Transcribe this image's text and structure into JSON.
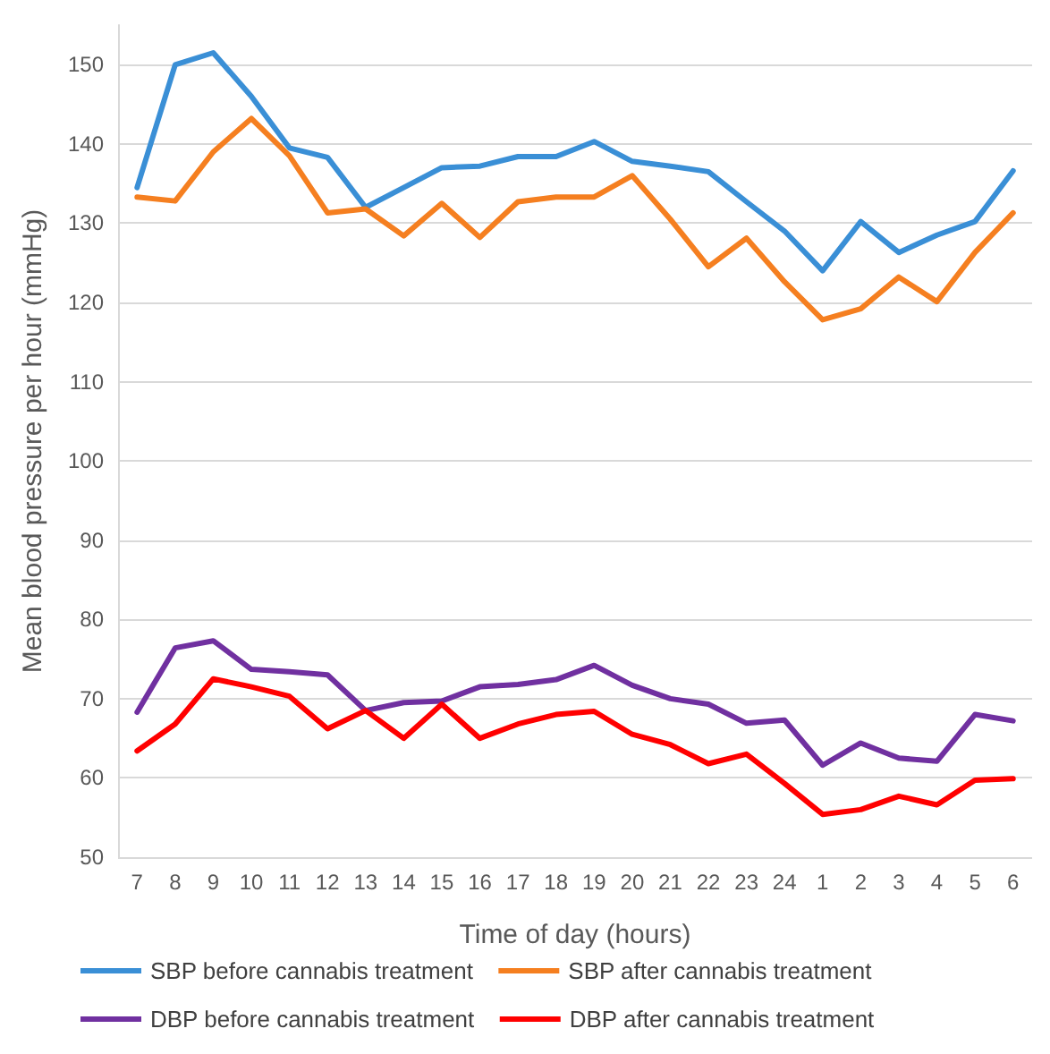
{
  "chart_data": {
    "type": "line",
    "xlabel": "Time of day (hours)",
    "ylabel": "Mean blood pressure per hour (mmHg)",
    "categories": [
      "7",
      "8",
      "9",
      "10",
      "11",
      "12",
      "13",
      "14",
      "15",
      "16",
      "17",
      "18",
      "19",
      "20",
      "21",
      "22",
      "23",
      "24",
      "1",
      "2",
      "3",
      "4",
      "5",
      "6"
    ],
    "series": [
      {
        "name": "SBP before cannabis treatment",
        "color": "#3a8fd6",
        "values": [
          134.5,
          150,
          151.5,
          146,
          139.5,
          138.3,
          132,
          134.5,
          137,
          137.2,
          138.4,
          138.4,
          140.3,
          137.8,
          137.2,
          136.5,
          132.7,
          129,
          124,
          130.2,
          126.3,
          128.5,
          130.2,
          136.6
        ]
      },
      {
        "name": "SBP after cannabis treatment",
        "color": "#f57f20",
        "values": [
          133.3,
          132.8,
          139,
          143.2,
          138.5,
          131.3,
          131.8,
          128.4,
          132.5,
          128.2,
          132.7,
          133.3,
          133.3,
          136,
          130.5,
          124.5,
          128.1,
          122.6,
          117.8,
          119.2,
          123.2,
          120.1,
          126.3,
          131.3
        ]
      },
      {
        "name": "DBP before cannabis treatment",
        "color": "#7030a0",
        "values": [
          68.3,
          76.4,
          77.3,
          73.7,
          73.4,
          73,
          68.5,
          69.5,
          69.7,
          71.5,
          71.8,
          72.4,
          74.2,
          71.7,
          70,
          69.3,
          66.9,
          67.3,
          61.6,
          64.4,
          62.5,
          62.1,
          68,
          67.2
        ]
      },
      {
        "name": "DBP after cannabis treatment",
        "color": "#ff0000",
        "values": [
          63.4,
          66.8,
          72.5,
          71.5,
          70.3,
          66.2,
          68.5,
          65,
          69.3,
          65,
          66.8,
          68,
          68.4,
          65.5,
          64.2,
          61.8,
          63,
          59.3,
          55.4,
          56,
          57.7,
          56.6,
          59.7,
          59.9
        ]
      }
    ],
    "ylim": [
      50,
      155
    ],
    "yticks": [
      50,
      60,
      70,
      80,
      90,
      100,
      110,
      120,
      130,
      140,
      150
    ],
    "grid": "y",
    "legend": "bottom",
    "marker": "none",
    "line_style": "solid"
  }
}
